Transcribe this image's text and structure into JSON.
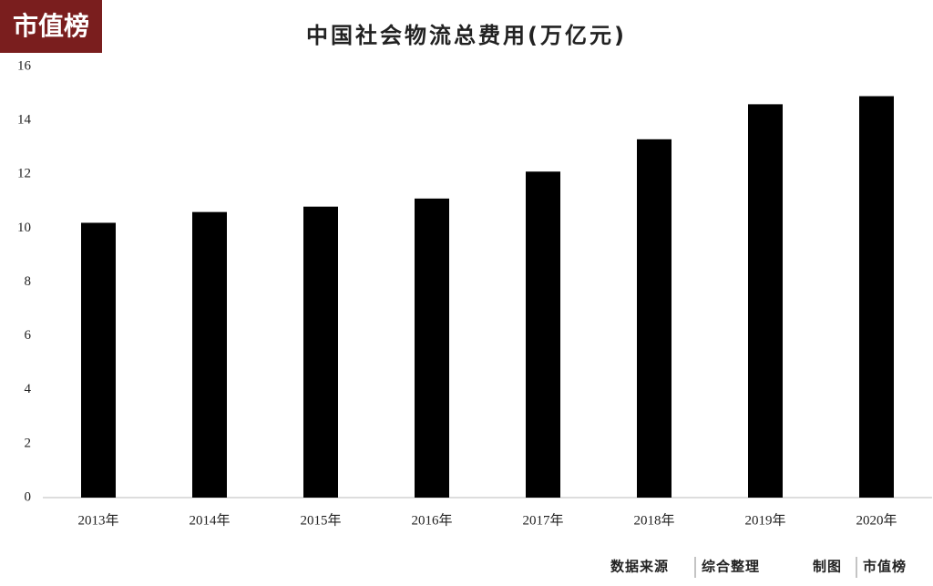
{
  "logo": "市值榜",
  "chart_data": {
    "type": "bar",
    "title": "中国社会物流总费用(万亿元)",
    "categories": [
      "2013年",
      "2014年",
      "2015年",
      "2016年",
      "2017年",
      "2018年",
      "2019年",
      "2020年"
    ],
    "values": [
      10.2,
      10.6,
      10.8,
      11.1,
      12.1,
      13.3,
      14.6,
      14.9
    ],
    "color": "#000000",
    "ylim": [
      0,
      16
    ],
    "yticks": [
      0,
      2,
      4,
      6,
      8,
      10,
      12,
      14,
      16
    ],
    "grid": false
  },
  "footer": {
    "source_label": "数据来源",
    "source": "综合整理",
    "maker_label": "制图",
    "maker": "市值榜"
  }
}
